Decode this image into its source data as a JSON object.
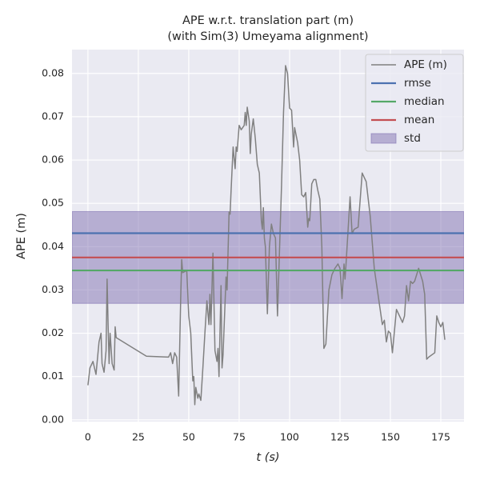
{
  "chart_data": {
    "type": "line",
    "title": "APE w.r.t. translation part (m)",
    "subtitle": "(with Sim(3) Umeyama alignment)",
    "xlabel": "t (s)",
    "ylabel": "APE (m)",
    "xlim": [
      -7.9,
      186.5
    ],
    "ylim": [
      -0.0004,
      0.0855
    ],
    "xticks": [
      0,
      25,
      50,
      75,
      100,
      125,
      150,
      175
    ],
    "yticks": [
      {
        "value": 0,
        "label": "0.00"
      },
      0.01,
      0.02,
      0.03,
      0.04,
      0.05,
      0.06,
      0.07,
      0.08
    ],
    "grid": true,
    "legend": "upper right",
    "series": [
      {
        "name": "APE (m)",
        "color": "#808080",
        "x": [
          0,
          1,
          2.5,
          4,
          5.5,
          6.5,
          7,
          8,
          9,
          9.5,
          10,
          10.5,
          11,
          12,
          13,
          13.5,
          14,
          29,
          40,
          41,
          42,
          43,
          44,
          45,
          46,
          46.5,
          47,
          49,
          50,
          51,
          52,
          52.5,
          53,
          53.5,
          54.5,
          55,
          56,
          57,
          58,
          59,
          60,
          60.5,
          61,
          62,
          63,
          64,
          64.5,
          65,
          66,
          66.5,
          67,
          68.5,
          69,
          70,
          70.5,
          71,
          72,
          73,
          73.5,
          74,
          75,
          76,
          77.5,
          78,
          78.5,
          79,
          80,
          80.5,
          81,
          82,
          83,
          84,
          85,
          86,
          86.5,
          87,
          87.5,
          88,
          89,
          90,
          91,
          92,
          93,
          94,
          96,
          97,
          98,
          99,
          100,
          101,
          102,
          102.5,
          104,
          105,
          106,
          107,
          108,
          109,
          109.5,
          110,
          111,
          112,
          113,
          114,
          115,
          116,
          117,
          118,
          119.5,
          121,
          122.5,
          124,
          125,
          126,
          127,
          127.5,
          128,
          130,
          131,
          132,
          134,
          136,
          138,
          140,
          142,
          146,
          147,
          148,
          149,
          150,
          151,
          153,
          155,
          156,
          157,
          158,
          159,
          160,
          161,
          162,
          164,
          166,
          167,
          168,
          169,
          172,
          173,
          174,
          175,
          176,
          177
        ],
        "values": [
          0.008,
          0.012,
          0.0135,
          0.0105,
          0.018,
          0.02,
          0.013,
          0.011,
          0.016,
          0.0325,
          0.022,
          0.013,
          0.02,
          0.013,
          0.0115,
          0.0215,
          0.019,
          0.0147,
          0.0145,
          0.0155,
          0.013,
          0.0155,
          0.0145,
          0.0055,
          0.028,
          0.037,
          0.034,
          0.0345,
          0.024,
          0.02,
          0.009,
          0.01,
          0.0035,
          0.0075,
          0.005,
          0.006,
          0.0045,
          0.012,
          0.02,
          0.0275,
          0.022,
          0.029,
          0.022,
          0.0385,
          0.016,
          0.0135,
          0.0165,
          0.01,
          0.031,
          0.012,
          0.015,
          0.033,
          0.03,
          0.048,
          0.0475,
          0.053,
          0.063,
          0.058,
          0.063,
          0.062,
          0.068,
          0.067,
          0.068,
          0.071,
          0.068,
          0.0722,
          0.069,
          0.0615,
          0.066,
          0.0695,
          0.065,
          0.059,
          0.057,
          0.046,
          0.044,
          0.049,
          0.042,
          0.04,
          0.0245,
          0.04,
          0.0452,
          0.043,
          0.042,
          0.024,
          0.054,
          0.071,
          0.0818,
          0.08,
          0.072,
          0.0715,
          0.063,
          0.0675,
          0.064,
          0.06,
          0.052,
          0.0515,
          0.0525,
          0.0445,
          0.0465,
          0.046,
          0.0545,
          0.0555,
          0.0555,
          0.053,
          0.051,
          0.04,
          0.0165,
          0.0175,
          0.03,
          0.0335,
          0.035,
          0.036,
          0.035,
          0.028,
          0.036,
          0.0325,
          0.036,
          0.0515,
          0.043,
          0.044,
          0.0445,
          0.057,
          0.055,
          0.047,
          0.035,
          0.022,
          0.023,
          0.018,
          0.0205,
          0.02,
          0.0155,
          0.0255,
          0.0235,
          0.0225,
          0.024,
          0.031,
          0.0275,
          0.032,
          0.0315,
          0.032,
          0.035,
          0.032,
          0.029,
          0.014,
          0.0145,
          0.0155,
          0.024,
          0.0225,
          0.0215,
          0.0225,
          0.0185
        ]
      }
    ],
    "statistics": [
      {
        "name": "rmse",
        "color": "#4c72b0",
        "value": 0.0431
      },
      {
        "name": "median",
        "color": "#55a868",
        "value": 0.0345
      },
      {
        "name": "mean",
        "color": "#c44e52",
        "value": 0.0375
      },
      {
        "name": "std",
        "color": "#8172b2",
        "value": 0.0106
      }
    ]
  }
}
